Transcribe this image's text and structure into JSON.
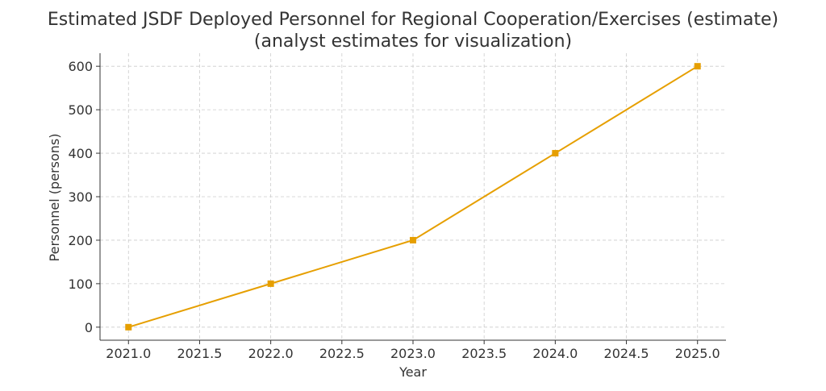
{
  "chart_data": {
    "type": "line",
    "title": "Estimated JSDF Deployed Personnel for Regional Cooperation/Exercises (estimate)",
    "subtitle": "(analyst estimates for visualization)",
    "xlabel": "Year",
    "ylabel": "Personnel (persons)",
    "x": [
      2021,
      2022,
      2023,
      2024,
      2025
    ],
    "series": [
      {
        "values": [
          0,
          100,
          200,
          400,
          600
        ],
        "color": "#E69F00",
        "marker": "square"
      }
    ],
    "xlim": [
      2020.8,
      2025.2
    ],
    "ylim": [
      -30,
      630
    ],
    "xticks": [
      "2021.0",
      "2021.5",
      "2022.0",
      "2022.5",
      "2023.0",
      "2023.5",
      "2024.0",
      "2024.5",
      "2025.0"
    ],
    "xtick_values": [
      2021.0,
      2021.5,
      2022.0,
      2022.5,
      2023.0,
      2023.5,
      2024.0,
      2024.5,
      2025.0
    ],
    "yticks": [
      "0",
      "100",
      "200",
      "300",
      "400",
      "500",
      "600"
    ],
    "ytick_values": [
      0,
      100,
      200,
      300,
      400,
      500,
      600
    ],
    "grid": true,
    "legend": false
  }
}
